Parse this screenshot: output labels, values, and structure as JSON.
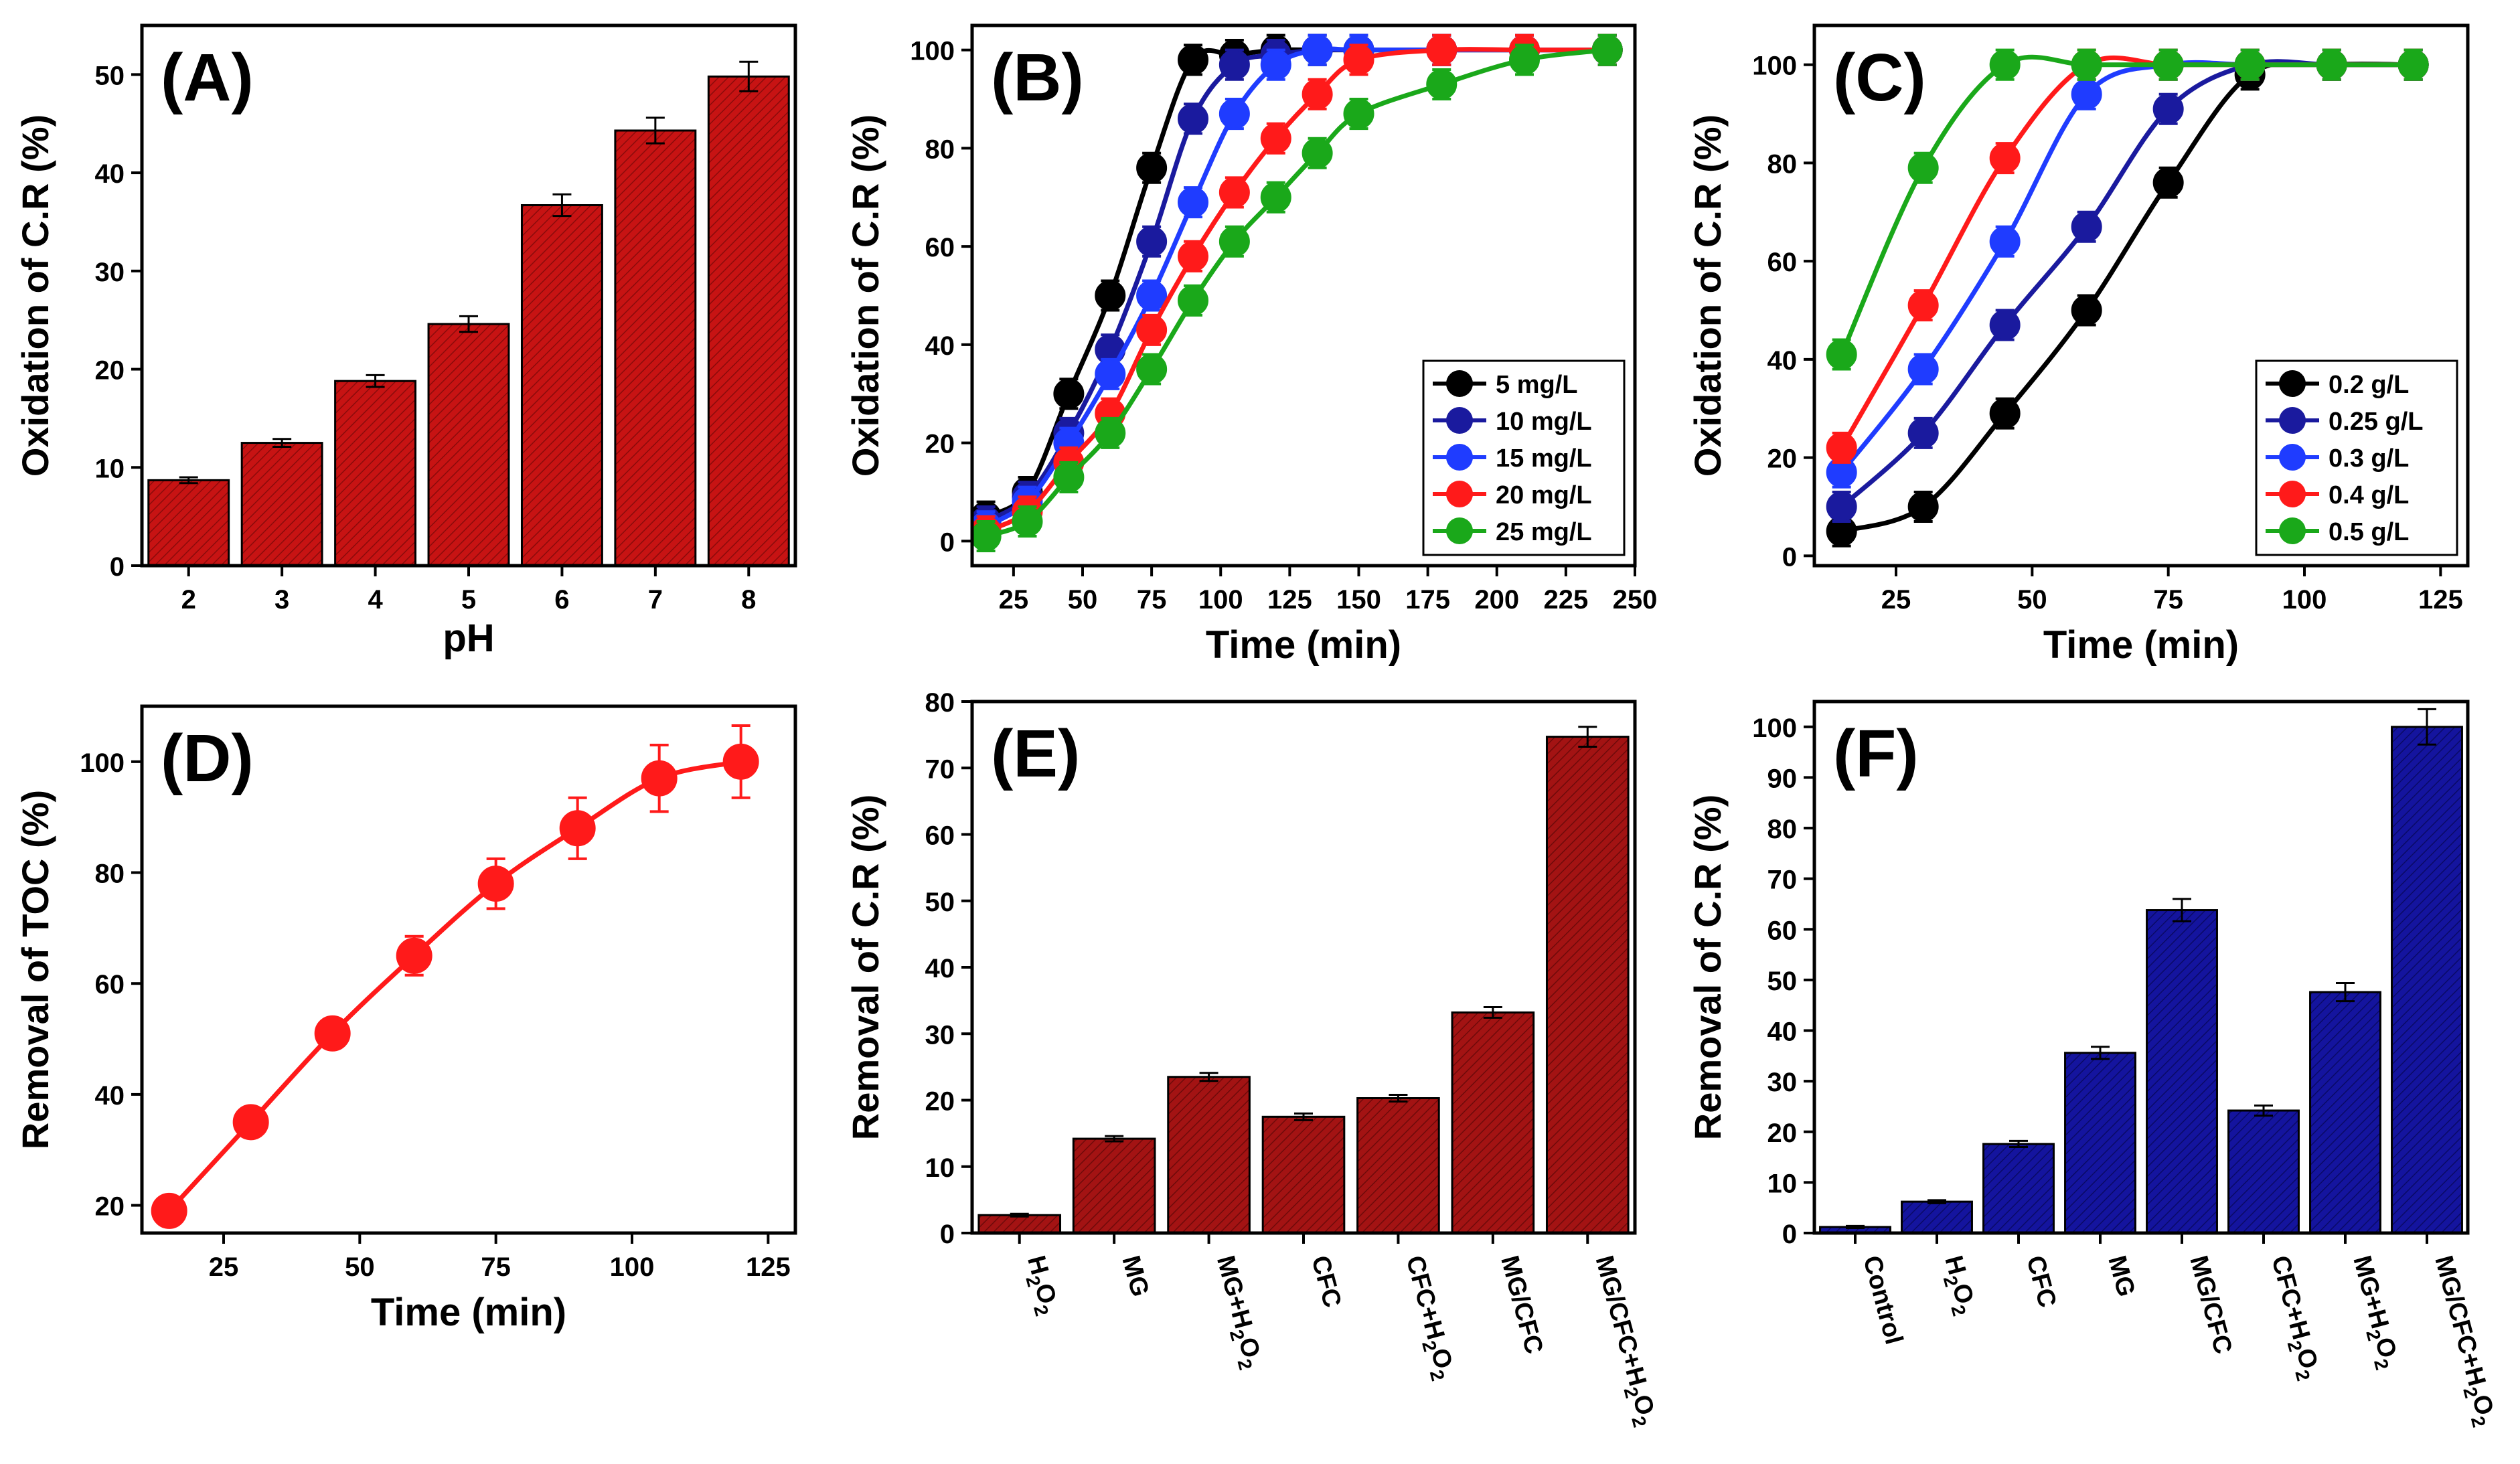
{
  "figure": {
    "panels": [
      {
        "id": "A",
        "letter": "(A)",
        "type": "bar",
        "xlabel": "pH",
        "ylabel": "Oxidation of C.R (%)",
        "ylim": [
          0,
          55
        ],
        "yticks": [
          0,
          10,
          20,
          30,
          40,
          50
        ],
        "bar_color": "#c71313",
        "categories": [
          "2",
          "3",
          "4",
          "5",
          "6",
          "7",
          "8"
        ],
        "values": [
          8.7,
          12.5,
          18.8,
          24.6,
          36.7,
          44.3,
          49.8
        ],
        "errors": [
          0.3,
          0.4,
          0.6,
          0.8,
          1.1,
          1.3,
          1.5
        ]
      },
      {
        "id": "B",
        "letter": "(B)",
        "type": "line",
        "xlabel": "Time (min)",
        "ylabel": "Oxidation of C.R (%)",
        "xlim": [
          10,
          250
        ],
        "ylim": [
          -5,
          105
        ],
        "xticks": [
          25,
          50,
          75,
          100,
          125,
          150,
          175,
          200,
          225,
          250
        ],
        "yticks": [
          0,
          20,
          40,
          60,
          80,
          100
        ],
        "series": [
          {
            "name": "5 mg/L",
            "color": "#000000",
            "x": [
              15,
              30,
              45,
              60,
              75,
              90,
              105,
              120,
              135,
              150,
              180,
              210,
              240
            ],
            "y": [
              5,
              10,
              30,
              50,
              76,
              98,
              99,
              100,
              100,
              100,
              100,
              100,
              100
            ]
          },
          {
            "name": "10 mg/L",
            "color": "#1a1a9e",
            "x": [
              15,
              30,
              45,
              60,
              75,
              90,
              105,
              120,
              135,
              150,
              180,
              210,
              240
            ],
            "y": [
              4,
              9,
              22,
              39,
              61,
              86,
              97,
              99,
              100,
              100,
              100,
              100,
              100
            ]
          },
          {
            "name": "15 mg/L",
            "color": "#1f3cff",
            "x": [
              15,
              30,
              45,
              60,
              75,
              90,
              105,
              120,
              135,
              150,
              180,
              210,
              240
            ],
            "y": [
              3,
              8,
              20,
              34,
              50,
              69,
              87,
              97,
              100,
              100,
              100,
              100,
              100
            ]
          },
          {
            "name": "20 mg/L",
            "color": "#ff1a1a",
            "x": [
              15,
              30,
              45,
              60,
              75,
              90,
              105,
              120,
              135,
              150,
              180,
              210,
              240
            ],
            "y": [
              2,
              6,
              16,
              26,
              43,
              58,
              71,
              82,
              91,
              98,
              100,
              100,
              100
            ]
          },
          {
            "name": "25 mg/L",
            "color": "#1aa81a",
            "x": [
              15,
              30,
              45,
              60,
              75,
              90,
              105,
              120,
              135,
              150,
              180,
              210,
              240
            ],
            "y": [
              1,
              4,
              13,
              22,
              35,
              49,
              61,
              70,
              79,
              87,
              93,
              98,
              100
            ]
          }
        ]
      },
      {
        "id": "C",
        "letter": "(C)",
        "type": "line",
        "xlabel": "Time (min)",
        "ylabel": "Oxidation of C.R (%)",
        "xlim": [
          10,
          130
        ],
        "ylim": [
          -2,
          108
        ],
        "xticks": [
          25,
          50,
          75,
          100,
          125
        ],
        "yticks": [
          0,
          20,
          40,
          60,
          80,
          100
        ],
        "series": [
          {
            "name": "0.2 g/L",
            "color": "#000000",
            "x": [
              15,
              30,
              45,
              60,
              75,
              90,
              105,
              120
            ],
            "y": [
              5,
              10,
              29,
              50,
              76,
              98,
              100,
              100
            ]
          },
          {
            "name": "0.25 g/L",
            "color": "#1a1a9e",
            "x": [
              15,
              30,
              45,
              60,
              75,
              90,
              105,
              120
            ],
            "y": [
              10,
              25,
              47,
              67,
              91,
              100,
              100,
              100
            ]
          },
          {
            "name": "0.3 g/L",
            "color": "#1f3cff",
            "x": [
              15,
              30,
              45,
              60,
              75,
              90,
              105,
              120
            ],
            "y": [
              17,
              38,
              64,
              94,
              100,
              100,
              100,
              100
            ]
          },
          {
            "name": "0.4 g/L",
            "color": "#ff1a1a",
            "x": [
              15,
              30,
              45,
              60,
              75,
              90,
              105,
              120
            ],
            "y": [
              22,
              51,
              81,
              100,
              100,
              100,
              100,
              100
            ]
          },
          {
            "name": "0.5 g/L",
            "color": "#1aa81a",
            "x": [
              15,
              30,
              45,
              60,
              75,
              90,
              105,
              120
            ],
            "y": [
              41,
              79,
              100,
              100,
              100,
              100,
              100,
              100
            ]
          }
        ]
      },
      {
        "id": "D",
        "letter": "(D)",
        "type": "line",
        "xlabel": "Time (min)",
        "ylabel": "Removal of TOC  (%)",
        "xlim": [
          10,
          130
        ],
        "ylim": [
          15,
          110
        ],
        "xticks": [
          25,
          50,
          75,
          100,
          125
        ],
        "yticks": [
          20,
          40,
          60,
          80,
          100
        ],
        "series": [
          {
            "name": "TOC",
            "color": "#ff1a1a",
            "x": [
              15,
              30,
              45,
              60,
              75,
              90,
              105,
              120
            ],
            "y": [
              19,
              35,
              51,
              65,
              78,
              88,
              97,
              100
            ],
            "errors": [
              1.5,
              2,
              2.5,
              3.5,
              4.5,
              5.5,
              6,
              6.5
            ]
          }
        ]
      },
      {
        "id": "E",
        "letter": "(E)",
        "type": "bar",
        "xlabel": "",
        "ylabel": "Removal of C.R (%)",
        "ylim": [
          0,
          80
        ],
        "yticks": [
          0,
          10,
          20,
          30,
          40,
          50,
          60,
          70,
          80
        ],
        "bar_color": "#a31313",
        "categories": [
          {
            "main": "H",
            "sub": "2",
            "mid": "O",
            "sub2": "2",
            "tail": ""
          },
          {
            "main": "MG",
            "sub": "",
            "mid": "",
            "sub2": "",
            "tail": ""
          },
          {
            "main": "MG+H",
            "sub": "2",
            "mid": "O",
            "sub2": "2",
            "tail": ""
          },
          {
            "main": "CFC",
            "sub": "",
            "mid": "",
            "sub2": "",
            "tail": ""
          },
          {
            "main": "CFC+H",
            "sub": "2",
            "mid": "O",
            "sub2": "2",
            "tail": ""
          },
          {
            "main": "MG/CFC",
            "sub": "",
            "mid": "",
            "sub2": "",
            "tail": ""
          },
          {
            "main": "MG/CFC+H",
            "sub": "2",
            "mid": "O",
            "sub2": "2",
            "tail": ""
          }
        ],
        "values": [
          2.7,
          14.2,
          23.5,
          17.5,
          20.3,
          33.2,
          74.7
        ],
        "errors": [
          0.2,
          0.4,
          0.6,
          0.5,
          0.5,
          0.8,
          1.5
        ]
      },
      {
        "id": "F",
        "letter": "(F)",
        "type": "bar",
        "xlabel": "",
        "ylabel": "Removal of C.R (%)",
        "ylim": [
          0,
          105
        ],
        "yticks": [
          0,
          10,
          20,
          30,
          40,
          50,
          60,
          70,
          80,
          90,
          100
        ],
        "bar_color": "#14149e",
        "categories": [
          {
            "main": "Control",
            "sub": "",
            "mid": "",
            "sub2": "",
            "tail": ""
          },
          {
            "main": "H",
            "sub": "2",
            "mid": "O",
            "sub2": "2",
            "tail": ""
          },
          {
            "main": "CFC",
            "sub": "",
            "mid": "",
            "sub2": "",
            "tail": ""
          },
          {
            "main": "MG",
            "sub": "",
            "mid": "",
            "sub2": "",
            "tail": ""
          },
          {
            "main": "MG/CFC",
            "sub": "",
            "mid": "",
            "sub2": "",
            "tail": ""
          },
          {
            "main": "CFC+H",
            "sub": "2",
            "mid": "O",
            "sub2": "2",
            "tail": ""
          },
          {
            "main": "MG+H",
            "sub": "2",
            "mid": "O",
            "sub2": "2",
            "tail": ""
          },
          {
            "main": "MG/CFC+H",
            "sub": "2",
            "mid": "O",
            "sub2": "2",
            "tail": ""
          }
        ],
        "values": [
          1.2,
          6.2,
          17.6,
          35.6,
          63.8,
          24.2,
          47.6,
          100.0
        ],
        "errors": [
          0.2,
          0.3,
          0.6,
          1.2,
          2.2,
          1.0,
          1.8,
          3.5
        ]
      }
    ]
  },
  "chart_data": [
    {
      "type": "bar",
      "title": "(A)",
      "xlabel": "pH",
      "ylabel": "Oxidation of C.R (%)",
      "categories": [
        "2",
        "3",
        "4",
        "5",
        "6",
        "7",
        "8"
      ],
      "values": [
        8.7,
        12.5,
        18.8,
        24.6,
        36.7,
        44.3,
        49.8
      ],
      "ylim": [
        0,
        55
      ]
    },
    {
      "type": "line",
      "title": "(B)",
      "xlabel": "Time (min)",
      "ylabel": "Oxidation of C.R (%)",
      "legend": "bottom-right",
      "series_names": [
        "5 mg/L",
        "10 mg/L",
        "15 mg/L",
        "20 mg/L",
        "25 mg/L"
      ]
    },
    {
      "type": "line",
      "title": "(C)",
      "xlabel": "Time (min)",
      "ylabel": "Oxidation of C.R (%)",
      "legend": "bottom-right",
      "series_names": [
        "0.2 g/L",
        "0.25 g/L",
        "0.3 g/L",
        "0.4 g/L",
        "0.5 g/L"
      ]
    },
    {
      "type": "line",
      "title": "(D)",
      "xlabel": "Time (min)",
      "ylabel": "Removal of TOC  (%)",
      "x": [
        15,
        30,
        45,
        60,
        75,
        90,
        105,
        120
      ],
      "values": [
        19,
        35,
        51,
        65,
        78,
        88,
        97,
        100
      ]
    },
    {
      "type": "bar",
      "title": "(E)",
      "ylabel": "Removal of C.R (%)",
      "categories": [
        "H2O2",
        "MG",
        "MG+H2O2",
        "CFC",
        "CFC+H2O2",
        "MG/CFC",
        "MG/CFC+H2O2"
      ],
      "values": [
        2.7,
        14.2,
        23.5,
        17.5,
        20.3,
        33.2,
        74.7
      ],
      "ylim": [
        0,
        80
      ]
    },
    {
      "type": "bar",
      "title": "(F)",
      "ylabel": "Removal of C.R (%)",
      "categories": [
        "Control",
        "H2O2",
        "CFC",
        "MG",
        "MG/CFC",
        "CFC+H2O2",
        "MG+H2O2",
        "MG/CFC+H2O2"
      ],
      "values": [
        1.2,
        6.2,
        17.6,
        35.6,
        63.8,
        24.2,
        47.6,
        100.0
      ],
      "ylim": [
        0,
        105
      ]
    }
  ]
}
